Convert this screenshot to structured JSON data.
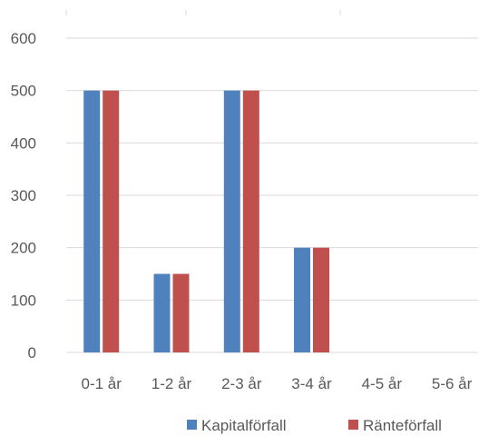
{
  "chart_data": {
    "type": "bar",
    "title": "",
    "xlabel": "",
    "ylabel": "",
    "categories": [
      "0-1 år",
      "1-2 år",
      "2-3 år",
      "3-4 år",
      "4-5 år",
      "5-6 år"
    ],
    "series": [
      {
        "name": "Kapitalförfall",
        "color": "#4f81bd",
        "values": [
          500,
          150,
          500,
          200,
          0,
          0
        ]
      },
      {
        "name": "Ränteförfall",
        "color": "#c0504d",
        "values": [
          500,
          150,
          500,
          200,
          0,
          0
        ]
      }
    ],
    "ylim": [
      0,
      600
    ],
    "yticks": [
      0,
      100,
      200,
      300,
      400,
      500,
      600
    ],
    "grid": true,
    "legend_position": "bottom-right"
  }
}
